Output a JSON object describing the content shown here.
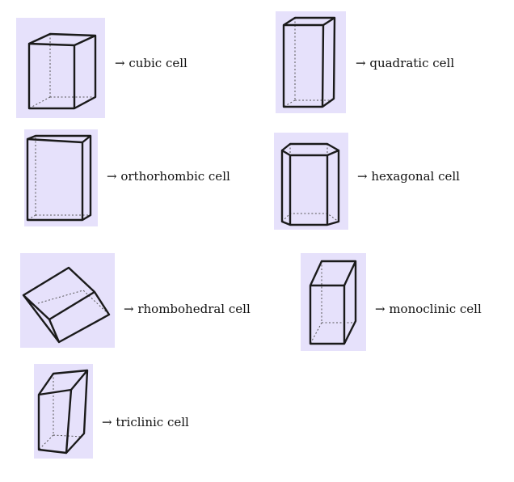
{
  "cells": [
    {
      "id": "cubic",
      "label": "→  cubic cell"
    },
    {
      "id": "quadratic",
      "label": "→ quadratic cell"
    },
    {
      "id": "orthorhombic",
      "label": "→ orthorhombic cell"
    },
    {
      "id": "hexagonal",
      "label": "→ hexagonal cell"
    },
    {
      "id": "rhombohedral",
      "label": "→ rhombohedral cell"
    },
    {
      "id": "monoclinic",
      "label": "→ monoclinic cell"
    },
    {
      "id": "triclinic",
      "label": "→ triclinic cell"
    }
  ]
}
